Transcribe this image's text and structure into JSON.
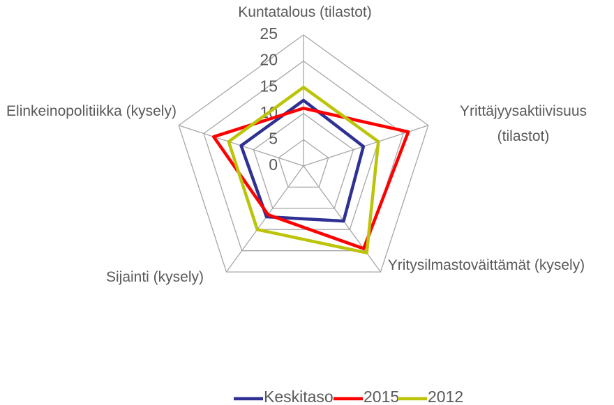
{
  "chart_data": {
    "type": "radar",
    "categories": [
      "Kuntatalous (tilastot)",
      "Yrittäjyysaktiivisuus (tilastot)",
      "Yritysilmastoväittämät (kysely)",
      "Sijainti (kysely)",
      "Elinkeinopolitiikka (kysely)"
    ],
    "series": [
      {
        "name": "Keskitaso",
        "color": "#2e3192",
        "values": [
          12.5,
          12,
          13,
          12,
          12.5
        ]
      },
      {
        "name": "2015",
        "color": "#ff0000",
        "values": [
          11,
          21,
          19.5,
          11.5,
          18
        ]
      },
      {
        "name": "2012",
        "color": "#bcc40a",
        "values": [
          15,
          15,
          20.5,
          15,
          15
        ]
      }
    ],
    "ylim": [
      0,
      25
    ],
    "yticks": [
      0,
      5,
      10,
      15,
      20,
      25
    ],
    "grid": true,
    "legend": "bottom"
  }
}
